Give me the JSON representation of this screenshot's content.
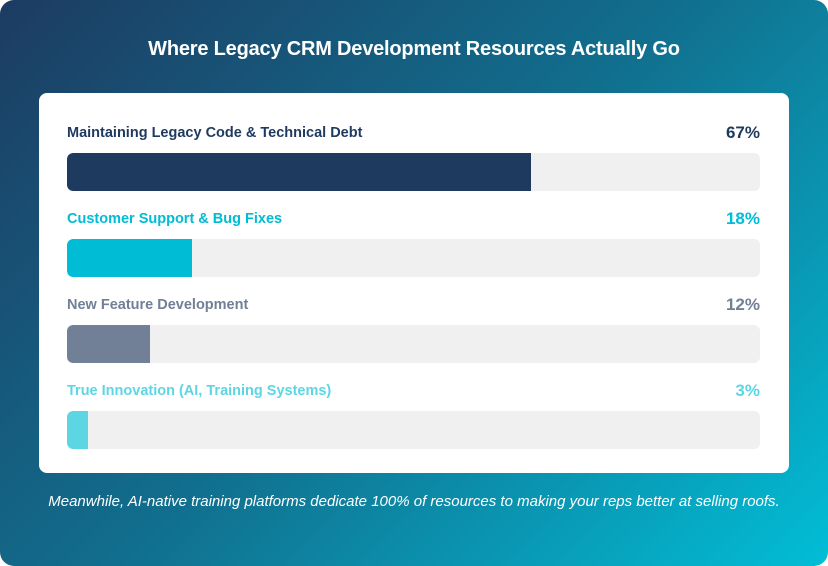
{
  "chart_data": {
    "type": "bar",
    "orientation": "horizontal",
    "title": "Where Legacy CRM Development Resources Actually Go",
    "xlim": [
      0,
      100
    ],
    "grid": false,
    "categories": [
      "Maintaining Legacy Code & Technical Debt",
      "Customer Support & Bug Fixes",
      "New Feature Development",
      "True Innovation (AI, Training Systems)"
    ],
    "values": [
      67,
      18,
      12,
      3
    ],
    "value_labels": [
      "67%",
      "18%",
      "12%",
      "3%"
    ],
    "colors": [
      "#1e3a5f",
      "#00bcd4",
      "#718096",
      "#5dd6e4"
    ],
    "annotation": "Meanwhile, AI-native training platforms dedicate 100% of resources to making your reps better at selling roofs."
  }
}
